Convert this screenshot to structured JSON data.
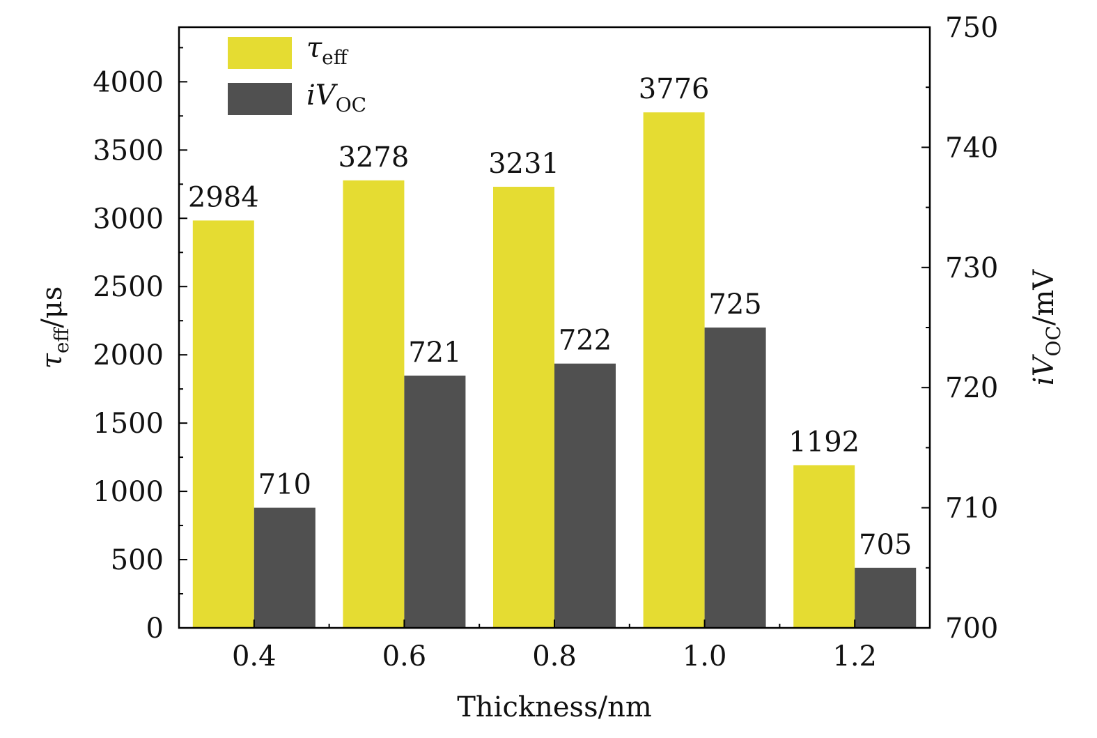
{
  "chart_data": {
    "type": "bar",
    "categories": [
      "0.4",
      "0.6",
      "0.8",
      "1.0",
      "1.2"
    ],
    "xlabel": "Thickness/nm",
    "ylabel_left": {
      "symbol": "τ",
      "subscript": "eff",
      "unit": "/μs"
    },
    "ylabel_right": {
      "prefix": "i",
      "symbol": "V",
      "subscript": "OC",
      "unit": "/mV"
    },
    "ylim_left": [
      0,
      4400
    ],
    "yticks_left": [
      "0",
      "500",
      "1000",
      "1500",
      "2000",
      "2500",
      "3000",
      "3500",
      "4000"
    ],
    "ylim_right": [
      700,
      750
    ],
    "yticks_right": [
      "700",
      "710",
      "720",
      "730",
      "740",
      "750"
    ],
    "series": [
      {
        "legend": {
          "symbol": "τ",
          "subscript": "eff"
        },
        "axis": "left",
        "color": "#e5dc32",
        "values": [
          2984,
          3278,
          3231,
          3776,
          1192
        ],
        "labels": [
          "2984",
          "3278",
          "3231",
          "3776",
          "1192"
        ]
      },
      {
        "legend": {
          "prefix": "i",
          "symbol": "V",
          "subscript": "OC"
        },
        "axis": "right",
        "color": "#505050",
        "values": [
          710,
          721,
          722,
          725,
          705
        ],
        "labels": [
          "710",
          "721",
          "722",
          "725",
          "705"
        ]
      }
    ],
    "legend_position": "top-left",
    "grid": false
  }
}
